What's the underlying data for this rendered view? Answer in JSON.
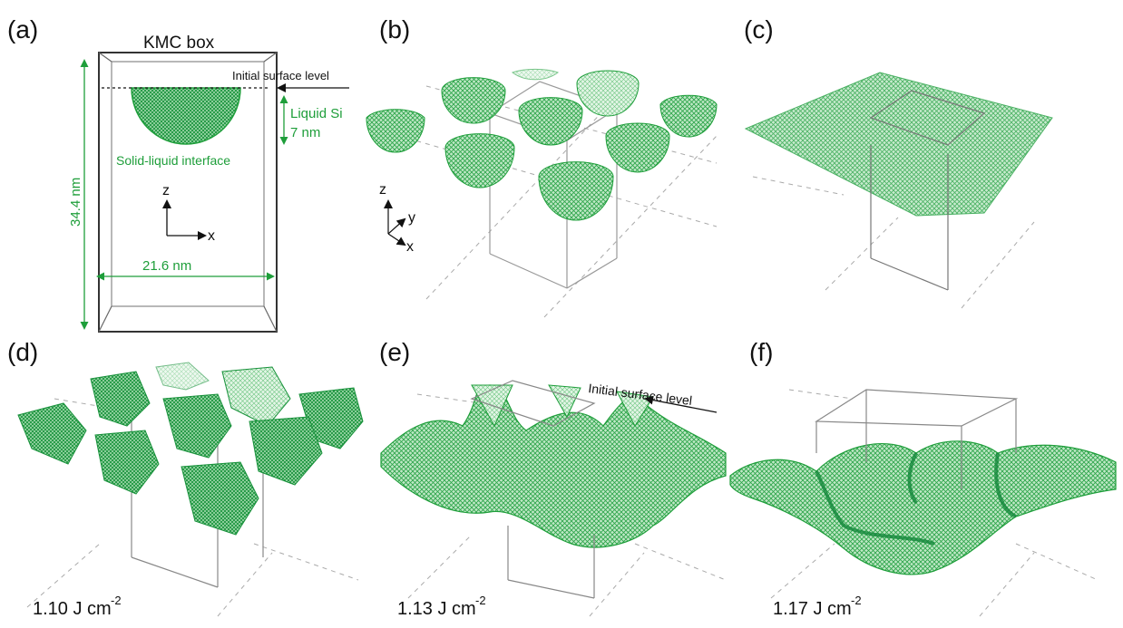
{
  "panels": [
    {
      "id": "a",
      "label": "(a)"
    },
    {
      "id": "b",
      "label": "(b)"
    },
    {
      "id": "c",
      "label": "(c)"
    },
    {
      "id": "d",
      "label": "(d)"
    },
    {
      "id": "e",
      "label": "(e)"
    },
    {
      "id": "f",
      "label": "(f)"
    }
  ],
  "panel_a": {
    "box_title": "KMC box",
    "initial_surface": "Initial surface level",
    "liquid_label": "Liquid Si",
    "depth_label": "7 nm",
    "interface_label": "Solid-liquid interface",
    "height_label": "34.4 nm",
    "width_label": "21.6 nm",
    "axis_z": "z",
    "axis_x": "x"
  },
  "panel_b": {
    "axis_z": "z",
    "axis_y": "y",
    "axis_x": "x"
  },
  "panel_e": {
    "initial_surface": "Initial surface level"
  },
  "fluences": {
    "d": {
      "value": "1.10 J cm",
      "exp": "-2"
    },
    "e": {
      "value": "1.13 J cm",
      "exp": "-2"
    },
    "f": {
      "value": "1.17 J cm",
      "exp": "-2"
    }
  },
  "colors": {
    "atoms": "#1e9e3a",
    "box": "#777777",
    "text": "#111111"
  }
}
